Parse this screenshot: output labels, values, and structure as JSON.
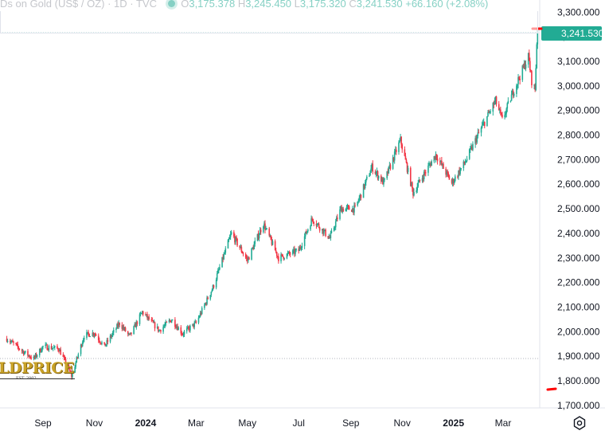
{
  "legend": {
    "symbol": "Ds on Gold (US$ / OZ) · 1D · TVC",
    "o_label": "O",
    "open": "3,175.378",
    "h_label": "H",
    "high": "3,245.450",
    "l_label": "L",
    "low": "3,175.320",
    "c_label": "C",
    "close": "3,241.530",
    "change": "+66.160 (+2.08%)"
  },
  "last_price_label": "3,241.530",
  "logo": {
    "text": "LDPRICE",
    "est": "EST. 2002"
  },
  "colors": {
    "up": "#22ab94",
    "down": "#f23645",
    "accent": "#22ab94",
    "axis_text": "#131722"
  },
  "chart_data": {
    "type": "candlestick",
    "y_ticks": [
      "3,300.000",
      "3,200.000",
      "3,100.000",
      "3,000.000",
      "2,900.000",
      "2,800.000",
      "2,700.000",
      "2,600.000",
      "2,500.000",
      "2,400.000",
      "2,300.000",
      "2,200.000",
      "2,100.000",
      "2,000.000",
      "1,900.000",
      "1,800.000",
      "1,700.000"
    ],
    "ylim": [
      1690,
      3330
    ],
    "x_labels": [
      {
        "label": "Sep",
        "date": "2023-09-01",
        "major": false
      },
      {
        "label": "Nov",
        "date": "2023-11-01",
        "major": false
      },
      {
        "label": "2024",
        "date": "2024-01-01",
        "major": true
      },
      {
        "label": "Mar",
        "date": "2024-03-01",
        "major": false
      },
      {
        "label": "May",
        "date": "2024-05-01",
        "major": false
      },
      {
        "label": "Jul",
        "date": "2024-07-01",
        "major": false
      },
      {
        "label": "Sep",
        "date": "2024-09-01",
        "major": false
      },
      {
        "label": "Nov",
        "date": "2024-11-01",
        "major": false
      },
      {
        "label": "2025",
        "date": "2025-01-01",
        "major": true
      },
      {
        "label": "Mar",
        "date": "2025-03-01",
        "major": false
      }
    ],
    "last_price": 3241.53,
    "last_high": 3245.45,
    "close_series": [
      {
        "date": "2023-07-20",
        "value": 1972
      },
      {
        "date": "2023-08-10",
        "value": 1915
      },
      {
        "date": "2023-08-21",
        "value": 1890
      },
      {
        "date": "2023-09-01",
        "value": 1940
      },
      {
        "date": "2023-09-20",
        "value": 1930
      },
      {
        "date": "2023-10-05",
        "value": 1820
      },
      {
        "date": "2023-10-20",
        "value": 1985
      },
      {
        "date": "2023-11-01",
        "value": 1995
      },
      {
        "date": "2023-11-13",
        "value": 1940
      },
      {
        "date": "2023-12-01",
        "value": 2035
      },
      {
        "date": "2023-12-13",
        "value": 1980
      },
      {
        "date": "2023-12-28",
        "value": 2080
      },
      {
        "date": "2024-01-17",
        "value": 2005
      },
      {
        "date": "2024-02-01",
        "value": 2050
      },
      {
        "date": "2024-02-14",
        "value": 1992
      },
      {
        "date": "2024-03-01",
        "value": 2035
      },
      {
        "date": "2024-03-21",
        "value": 2180
      },
      {
        "date": "2024-04-12",
        "value": 2400
      },
      {
        "date": "2024-05-01",
        "value": 2290
      },
      {
        "date": "2024-05-20",
        "value": 2440
      },
      {
        "date": "2024-06-07",
        "value": 2300
      },
      {
        "date": "2024-07-01",
        "value": 2330
      },
      {
        "date": "2024-07-17",
        "value": 2460
      },
      {
        "date": "2024-08-07",
        "value": 2380
      },
      {
        "date": "2024-08-20",
        "value": 2500
      },
      {
        "date": "2024-09-06",
        "value": 2500
      },
      {
        "date": "2024-09-26",
        "value": 2670
      },
      {
        "date": "2024-10-10",
        "value": 2605
      },
      {
        "date": "2024-10-30",
        "value": 2780
      },
      {
        "date": "2024-11-14",
        "value": 2565
      },
      {
        "date": "2024-11-25",
        "value": 2630
      },
      {
        "date": "2024-12-11",
        "value": 2720
      },
      {
        "date": "2024-12-30",
        "value": 2605
      },
      {
        "date": "2025-01-15",
        "value": 2690
      },
      {
        "date": "2025-01-30",
        "value": 2800
      },
      {
        "date": "2025-02-20",
        "value": 2940
      },
      {
        "date": "2025-02-28",
        "value": 2860
      },
      {
        "date": "2025-03-14",
        "value": 2985
      },
      {
        "date": "2025-03-31",
        "value": 3120
      },
      {
        "date": "2025-04-04",
        "value": 3020
      },
      {
        "date": "2025-04-08",
        "value": 2985
      },
      {
        "date": "2025-04-10",
        "value": 3175
      },
      {
        "date": "2025-04-11",
        "value": 3241.53
      }
    ]
  }
}
